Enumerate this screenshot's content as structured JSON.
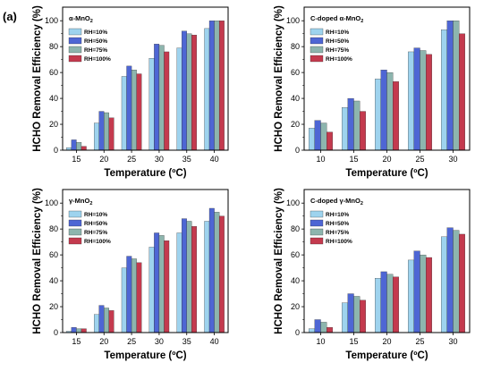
{
  "figure_label": "(a)",
  "colors": {
    "RH=10%": "#9ed3ee",
    "RH=50%": "#4e66d4",
    "RH=75%": "#8db5ae",
    "RH=100%": "#c43a4e"
  },
  "chart_data": [
    {
      "type": "bar",
      "title": "α-MnO2",
      "xlabel": "Temperature (ºC)",
      "ylabel": "HCHO Removal Efficiency (%)",
      "ylim": [
        0,
        100
      ],
      "yticks": [
        "0",
        "20",
        "40",
        "60",
        "80",
        "100"
      ],
      "categories": [
        "15",
        "20",
        "25",
        "30",
        "35",
        "40"
      ],
      "legend_position": "top-left",
      "series": [
        {
          "name": "RH=10%",
          "values": [
            2,
            21,
            57,
            71,
            79,
            94
          ]
        },
        {
          "name": "RH=50%",
          "values": [
            8,
            30,
            65,
            82,
            92,
            100
          ]
        },
        {
          "name": "RH=75%",
          "values": [
            6,
            29,
            62,
            81,
            90,
            100
          ]
        },
        {
          "name": "RH=100%",
          "values": [
            3,
            25,
            59,
            76,
            89,
            100
          ]
        }
      ]
    },
    {
      "type": "bar",
      "title": "C-doped α-MnO2",
      "xlabel": "Temperature (ºC)",
      "ylabel": "HCHO Removal Efficiency (%)",
      "ylim": [
        0,
        100
      ],
      "yticks": [
        "0",
        "20",
        "40",
        "60",
        "80",
        "100"
      ],
      "categories": [
        "10",
        "15",
        "20",
        "25",
        "30"
      ],
      "legend_position": "top-left",
      "series": [
        {
          "name": "RH=10%",
          "values": [
            17,
            33,
            55,
            76,
            93
          ]
        },
        {
          "name": "RH=50%",
          "values": [
            23,
            40,
            62,
            79,
            100
          ]
        },
        {
          "name": "RH=75%",
          "values": [
            21,
            38,
            60,
            77,
            100
          ]
        },
        {
          "name": "RH=100%",
          "values": [
            14,
            30,
            53,
            74,
            90
          ]
        }
      ]
    },
    {
      "type": "bar",
      "title": "γ-MnO2",
      "xlabel": "Temperature (ºC)",
      "ylabel": "HCHO Removal Efficiency (%)",
      "ylim": [
        0,
        100
      ],
      "yticks": [
        "0",
        "20",
        "40",
        "60",
        "80",
        "100"
      ],
      "categories": [
        "15",
        "20",
        "25",
        "30",
        "35",
        "40"
      ],
      "legend_position": "top-left",
      "series": [
        {
          "name": "RH=10%",
          "values": [
            1,
            14,
            50,
            66,
            77,
            86
          ]
        },
        {
          "name": "RH=50%",
          "values": [
            4,
            21,
            59,
            77,
            88,
            96
          ]
        },
        {
          "name": "RH=75%",
          "values": [
            3,
            19,
            57,
            75,
            86,
            93
          ]
        },
        {
          "name": "RH=100%",
          "values": [
            3,
            17,
            54,
            71,
            82,
            90
          ]
        }
      ]
    },
    {
      "type": "bar",
      "title": "C-doped γ-MnO2",
      "xlabel": "Temperature (ºC)",
      "ylabel": "HCHO Removal Efficiency (%)",
      "ylim": [
        0,
        100
      ],
      "yticks": [
        "0",
        "20",
        "40",
        "60",
        "80",
        "100"
      ],
      "categories": [
        "10",
        "15",
        "20",
        "25",
        "30"
      ],
      "legend_position": "top-left",
      "series": [
        {
          "name": "RH=10%",
          "values": [
            3,
            23,
            42,
            56,
            74
          ]
        },
        {
          "name": "RH=50%",
          "values": [
            10,
            30,
            47,
            63,
            81
          ]
        },
        {
          "name": "RH=75%",
          "values": [
            8,
            28,
            45,
            60,
            79
          ]
        },
        {
          "name": "RH=100%",
          "values": [
            4,
            25,
            43,
            58,
            76
          ]
        }
      ]
    }
  ]
}
